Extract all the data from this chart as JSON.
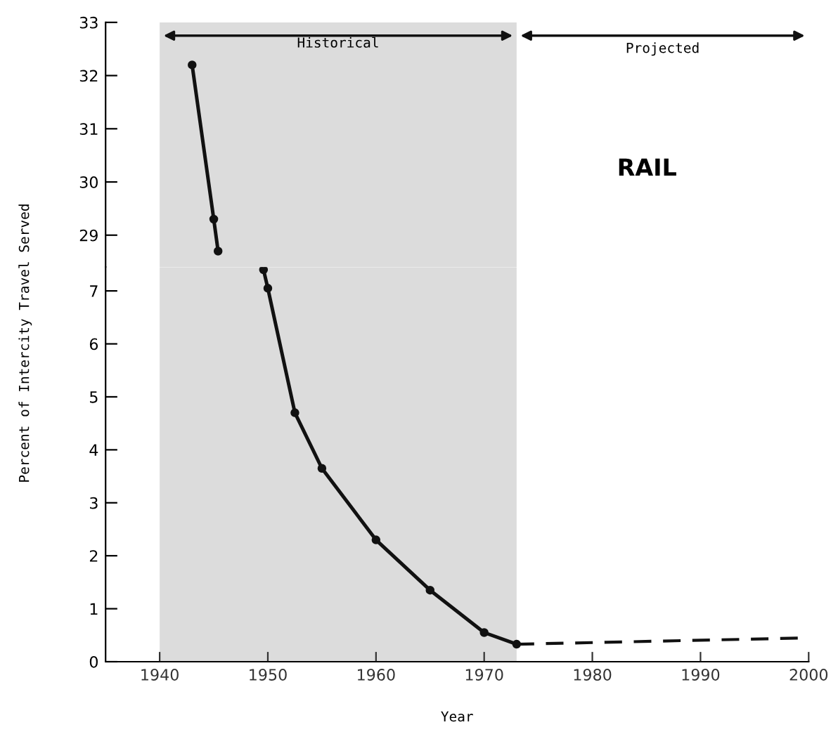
{
  "chart_data": [
    {
      "type": "line",
      "ylabel": "Percent of Intercity Travel Served",
      "xlim": [
        1935,
        2000
      ],
      "ylim": [
        28.4,
        33
      ],
      "yticks": [
        29,
        30,
        31,
        32,
        33
      ],
      "tick_labels": "y",
      "grid": false,
      "series": [
        {
          "color": "#111111",
          "x": [
            1943,
            1945,
            1945.4
          ],
          "values": [
            32.2,
            29.3,
            28.7
          ],
          "marker": "circle",
          "line_style": "solid"
        }
      ],
      "bands": [
        {
          "axis": "x",
          "from": 1940,
          "to": 1973,
          "label": "Historical",
          "color": "#dcdcdc"
        }
      ],
      "annotations": [
        "Projected",
        "RAIL"
      ]
    },
    {
      "type": "line",
      "xlabel": "Year",
      "xlim": [
        1935,
        2000
      ],
      "ylim": [
        0,
        7.45
      ],
      "xticks": [
        1940,
        1950,
        1960,
        1970,
        1980,
        1990,
        2000
      ],
      "yticks": [
        0,
        1,
        2,
        3,
        4,
        5,
        6,
        7
      ],
      "grid": false,
      "series": [
        {
          "color": "#111111",
          "x": [
            1949.6,
            1950,
            1952.5,
            1955,
            1960,
            1965,
            1970,
            1973
          ],
          "values": [
            7.4,
            7.05,
            4.7,
            3.65,
            2.3,
            1.35,
            0.55,
            0.33
          ],
          "marker": "circle",
          "line_style": "solid"
        },
        {
          "color": "#111111",
          "x": [
            1973,
            2000
          ],
          "values": [
            0.33,
            0.45
          ],
          "marker": "none",
          "line_style": "dashed"
        }
      ],
      "bands": [
        {
          "axis": "x",
          "from": 1940,
          "to": 1973,
          "color": "#dcdcdc"
        }
      ]
    }
  ]
}
